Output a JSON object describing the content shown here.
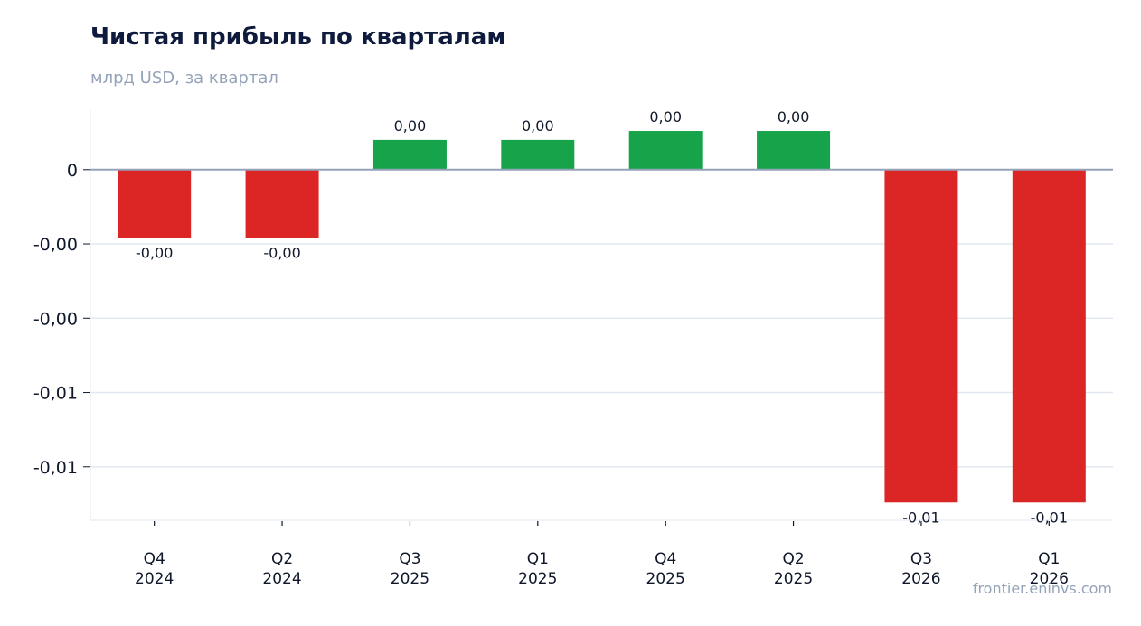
{
  "header": {
    "title": "Чистая прибыль по кварталам",
    "subtitle": "млрд USD, за квартал"
  },
  "footer": {
    "source": "frontier.eninvs.com"
  },
  "colors": {
    "positive": "#16a34a",
    "negative": "#dc2626",
    "grid": "#e2e8f0",
    "zero_line": "#94a3b8",
    "text": "#0f172a"
  },
  "chart_data": {
    "type": "bar",
    "title": "Чистая прибыль по кварталам",
    "subtitle": "млрд USD, за квартал",
    "xlabel": "",
    "ylabel": "",
    "categories": [
      [
        "Q4",
        "2024"
      ],
      [
        "Q2",
        "2024"
      ],
      [
        "Q3",
        "2025"
      ],
      [
        "Q1",
        "2025"
      ],
      [
        "Q4",
        "2025"
      ],
      [
        "Q2",
        "2025"
      ],
      [
        "Q3",
        "2026"
      ],
      [
        "Q1",
        "2026"
      ]
    ],
    "values": [
      -0.0023,
      -0.0023,
      0.001,
      0.001,
      0.0013,
      0.0013,
      -0.0112,
      -0.0112
    ],
    "data_labels": [
      "-0,00",
      "-0,00",
      "0,00",
      "0,00",
      "0,00",
      "0,00",
      "-0,01",
      "-0,01"
    ],
    "y_ticks": [
      {
        "value": 0,
        "label": "0"
      },
      {
        "value": -0.0025,
        "label": "-0,00"
      },
      {
        "value": -0.005,
        "label": "-0,00"
      },
      {
        "value": -0.0075,
        "label": "-0,01"
      },
      {
        "value": -0.01,
        "label": "-0,01"
      }
    ],
    "ylim": [
      -0.0118,
      0.002
    ],
    "grid": true,
    "legend": "none"
  }
}
